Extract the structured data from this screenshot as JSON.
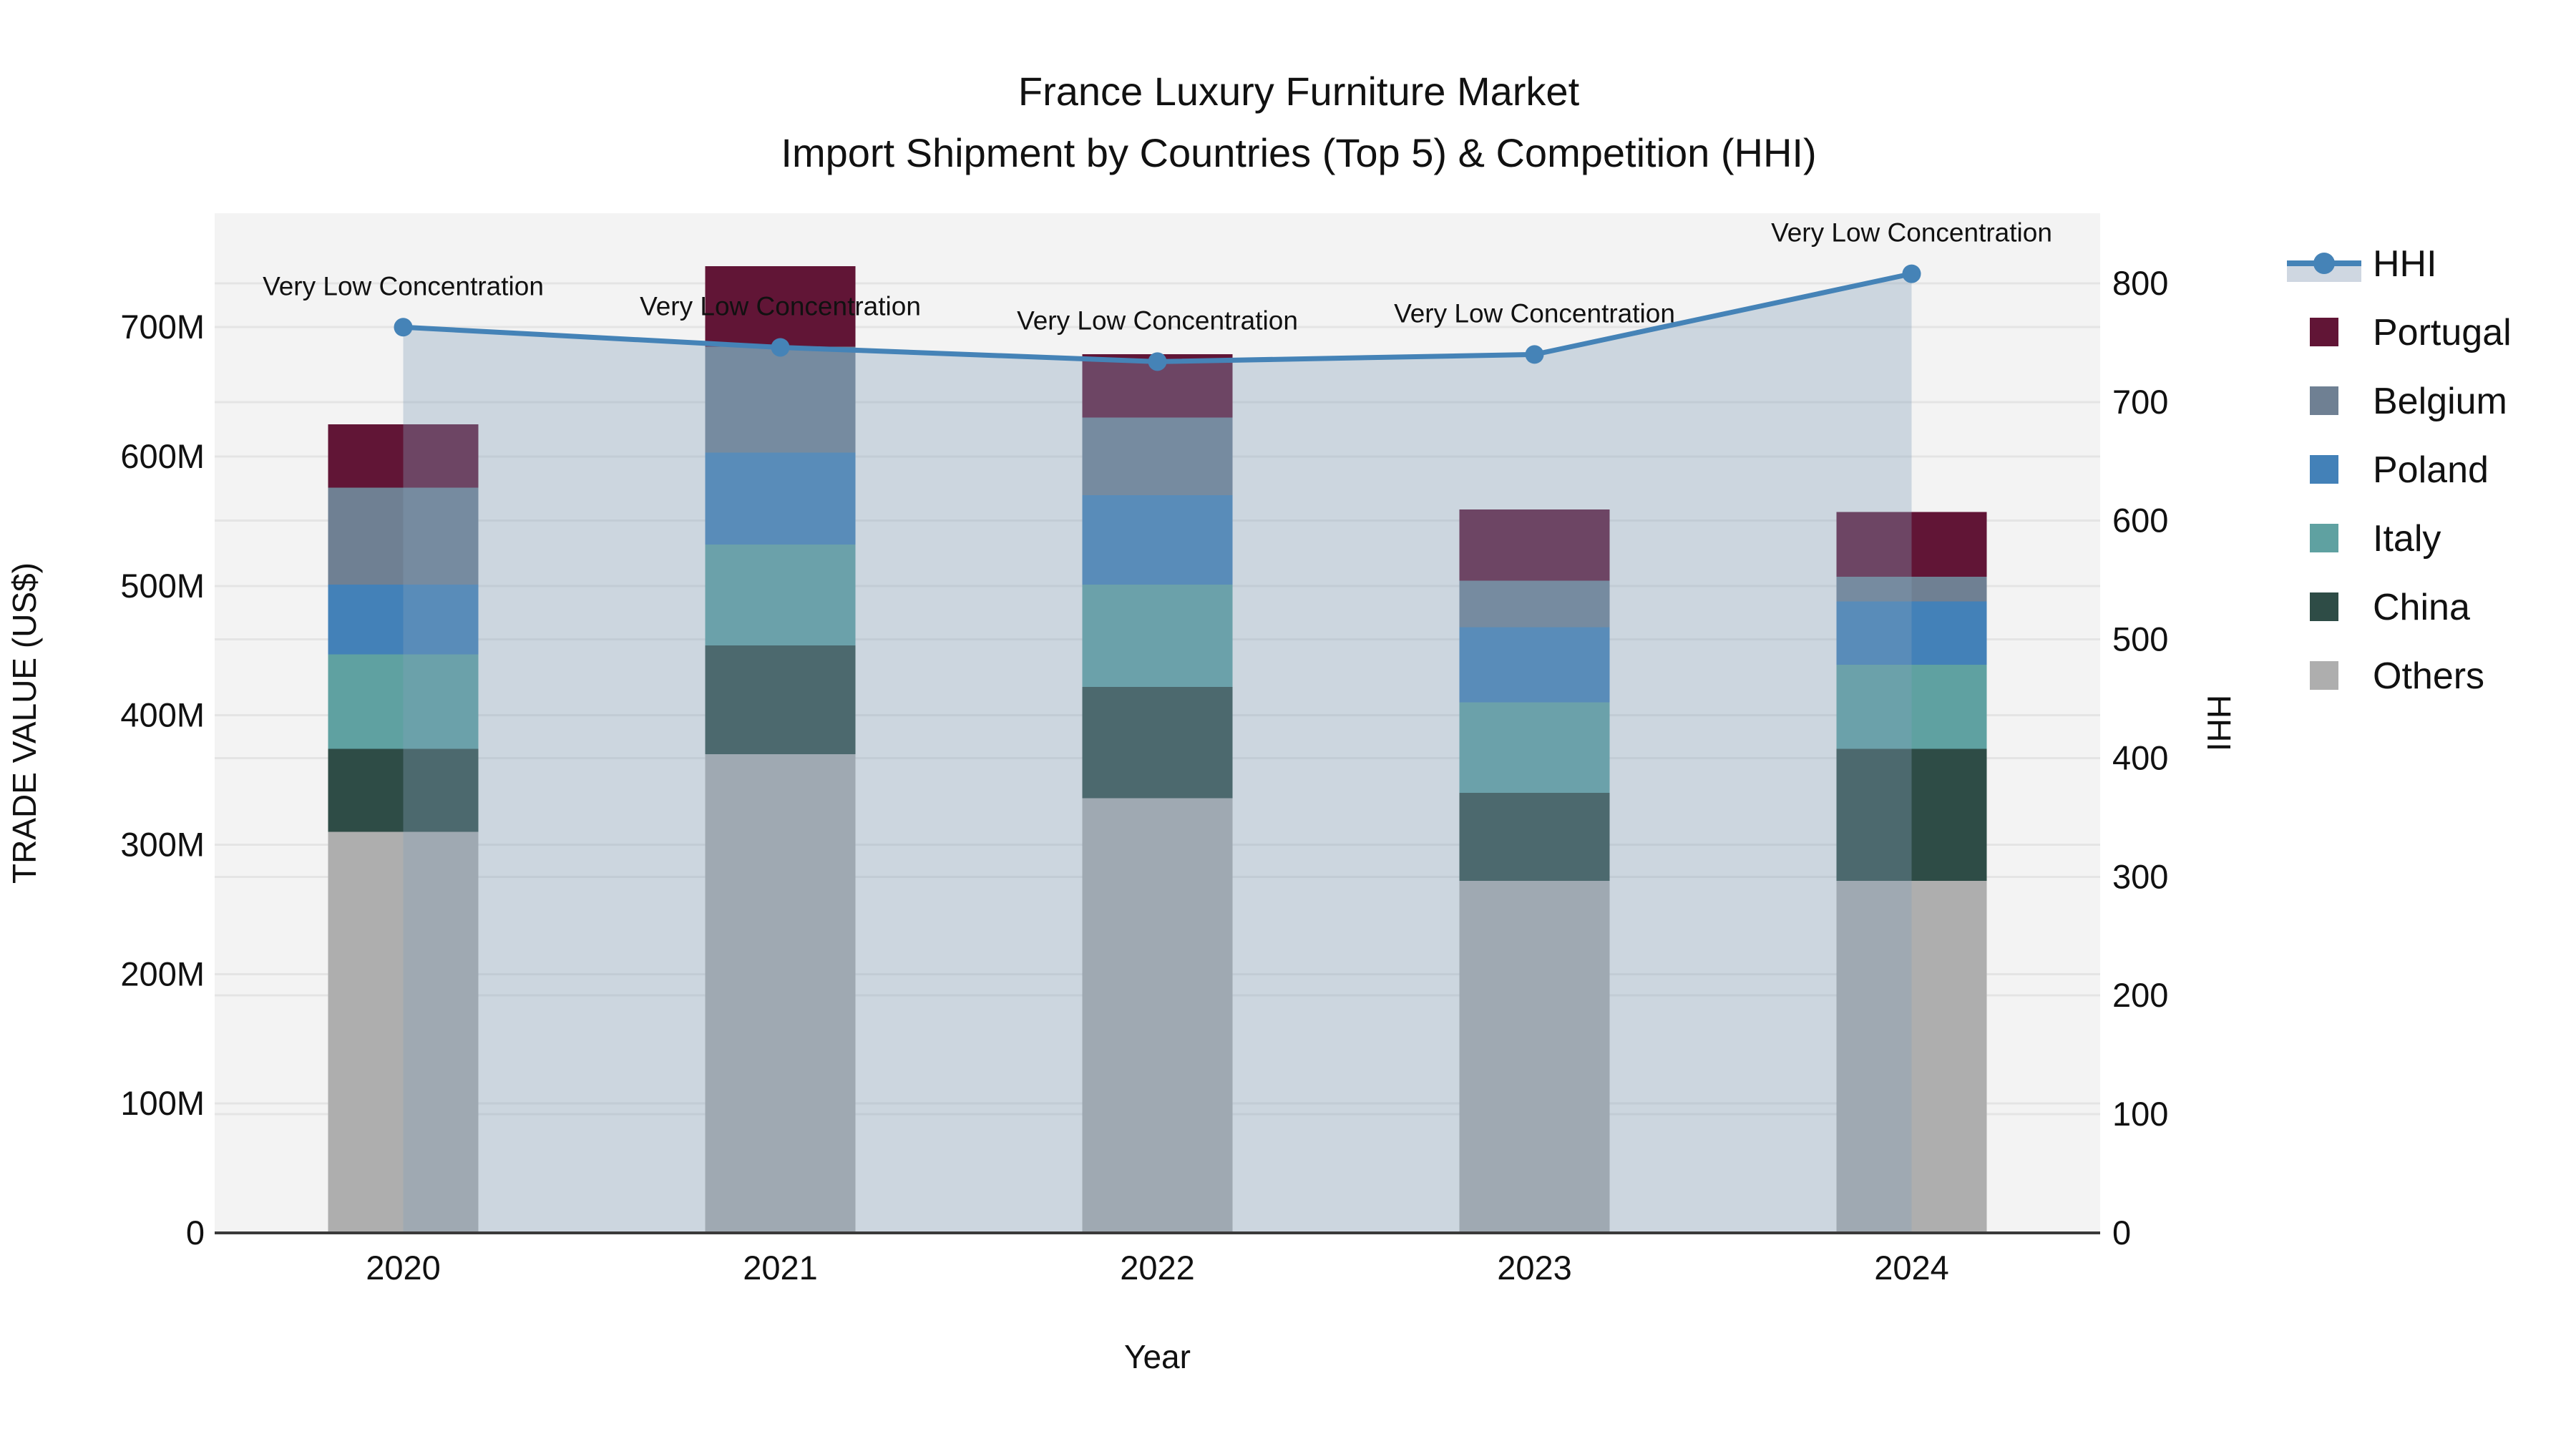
{
  "title": {
    "line1": "France Luxury Furniture Market",
    "line2": "Import Shipment by Countries (Top 5) & Competition (HHI)"
  },
  "chart_data": {
    "type": "bar",
    "stacked": true,
    "title_line1": "France Luxury Furniture Market",
    "title_line2": "Import Shipment by Countries (Top 5) & Competition (HHI)",
    "categories": [
      "2020",
      "2021",
      "2022",
      "2023",
      "2024"
    ],
    "value_unit": "Million US$",
    "series": [
      {
        "name": "Others",
        "color": "#aeaeae",
        "values": [
          310,
          370,
          336,
          272,
          272
        ]
      },
      {
        "name": "China",
        "color": "#2e4c46",
        "values": [
          64,
          84,
          86,
          68,
          102
        ]
      },
      {
        "name": "Italy",
        "color": "#5fa1a1",
        "values": [
          73,
          78,
          79,
          70,
          65
        ]
      },
      {
        "name": "Poland",
        "color": "#4381b8",
        "values": [
          54,
          71,
          69,
          58,
          49
        ]
      },
      {
        "name": "Belgium",
        "color": "#6f8093",
        "values": [
          75,
          82,
          60,
          36,
          19
        ]
      },
      {
        "name": "Portugal",
        "color": "#611536",
        "values": [
          49,
          62,
          49,
          55,
          50
        ]
      }
    ],
    "bar_totals": [
      625,
      747,
      679,
      559,
      557
    ],
    "line_series": {
      "name": "HHI",
      "color": "#4583b7",
      "values": [
        763,
        746,
        734,
        740,
        808
      ],
      "area_fill": "rgba(132,160,186,0.35)",
      "legend_band_color": "#cfd7e1"
    },
    "annotations": [
      "Very Low Concentration",
      "Very Low Concentration",
      "Very Low Concentration",
      "Very Low Concentration",
      "Very Low Concentration"
    ],
    "xlabel": "Year",
    "ylabel": "TRADE VALUE (US$)",
    "y2label": "HHI",
    "yticks": [
      0,
      100,
      200,
      300,
      400,
      500,
      600,
      700
    ],
    "ytick_labels": [
      "0",
      "100M",
      "200M",
      "300M",
      "400M",
      "500M",
      "600M",
      "700M"
    ],
    "y2ticks": [
      0,
      100,
      200,
      300,
      400,
      500,
      600,
      700,
      800
    ],
    "y2tick_labels": [
      "0",
      "100",
      "200",
      "300",
      "400",
      "500",
      "600",
      "700",
      "800"
    ],
    "ylim": [
      0,
      788
    ],
    "y2lim": [
      0,
      859
    ],
    "grid": true,
    "legend_position": "right",
    "plot_bg": "#f3f3f3",
    "grid_color": "#e4e4e4",
    "axisline_color": "#3a3a3a",
    "legend_order": [
      "HHI",
      "Portugal",
      "Belgium",
      "Poland",
      "Italy",
      "China",
      "Others"
    ]
  }
}
